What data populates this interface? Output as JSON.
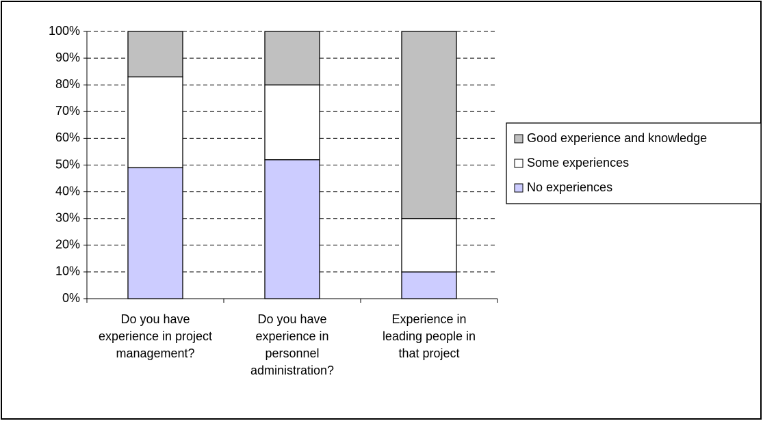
{
  "chart_data": {
    "type": "stacked_bar_100",
    "categories": [
      "Do you have experience in project management?",
      "Do you have experience in personnel administration?",
      "Experience in leading people in that project"
    ],
    "series": [
      {
        "name": "No experiences",
        "color": "#ccccff",
        "values": [
          49,
          52,
          10
        ]
      },
      {
        "name": "Some experiences",
        "color": "#ffffff",
        "values": [
          34,
          28,
          20
        ]
      },
      {
        "name": "Good experience and knowledge",
        "color": "#c0c0c0",
        "values": [
          17,
          20,
          70
        ]
      }
    ],
    "ylim": [
      0,
      100
    ],
    "yticks": [
      {
        "value": 0,
        "label": "0%"
      },
      {
        "value": 10,
        "label": "10%"
      },
      {
        "value": 20,
        "label": "20%"
      },
      {
        "value": 30,
        "label": "30%"
      },
      {
        "value": 40,
        "label": "40%"
      },
      {
        "value": 50,
        "label": "50%"
      },
      {
        "value": 60,
        "label": "60%"
      },
      {
        "value": 70,
        "label": "70%"
      },
      {
        "value": 80,
        "label": "80%"
      },
      {
        "value": 90,
        "label": "90%"
      },
      {
        "value": 100,
        "label": "100%"
      }
    ],
    "grid": true,
    "legend": "right"
  }
}
